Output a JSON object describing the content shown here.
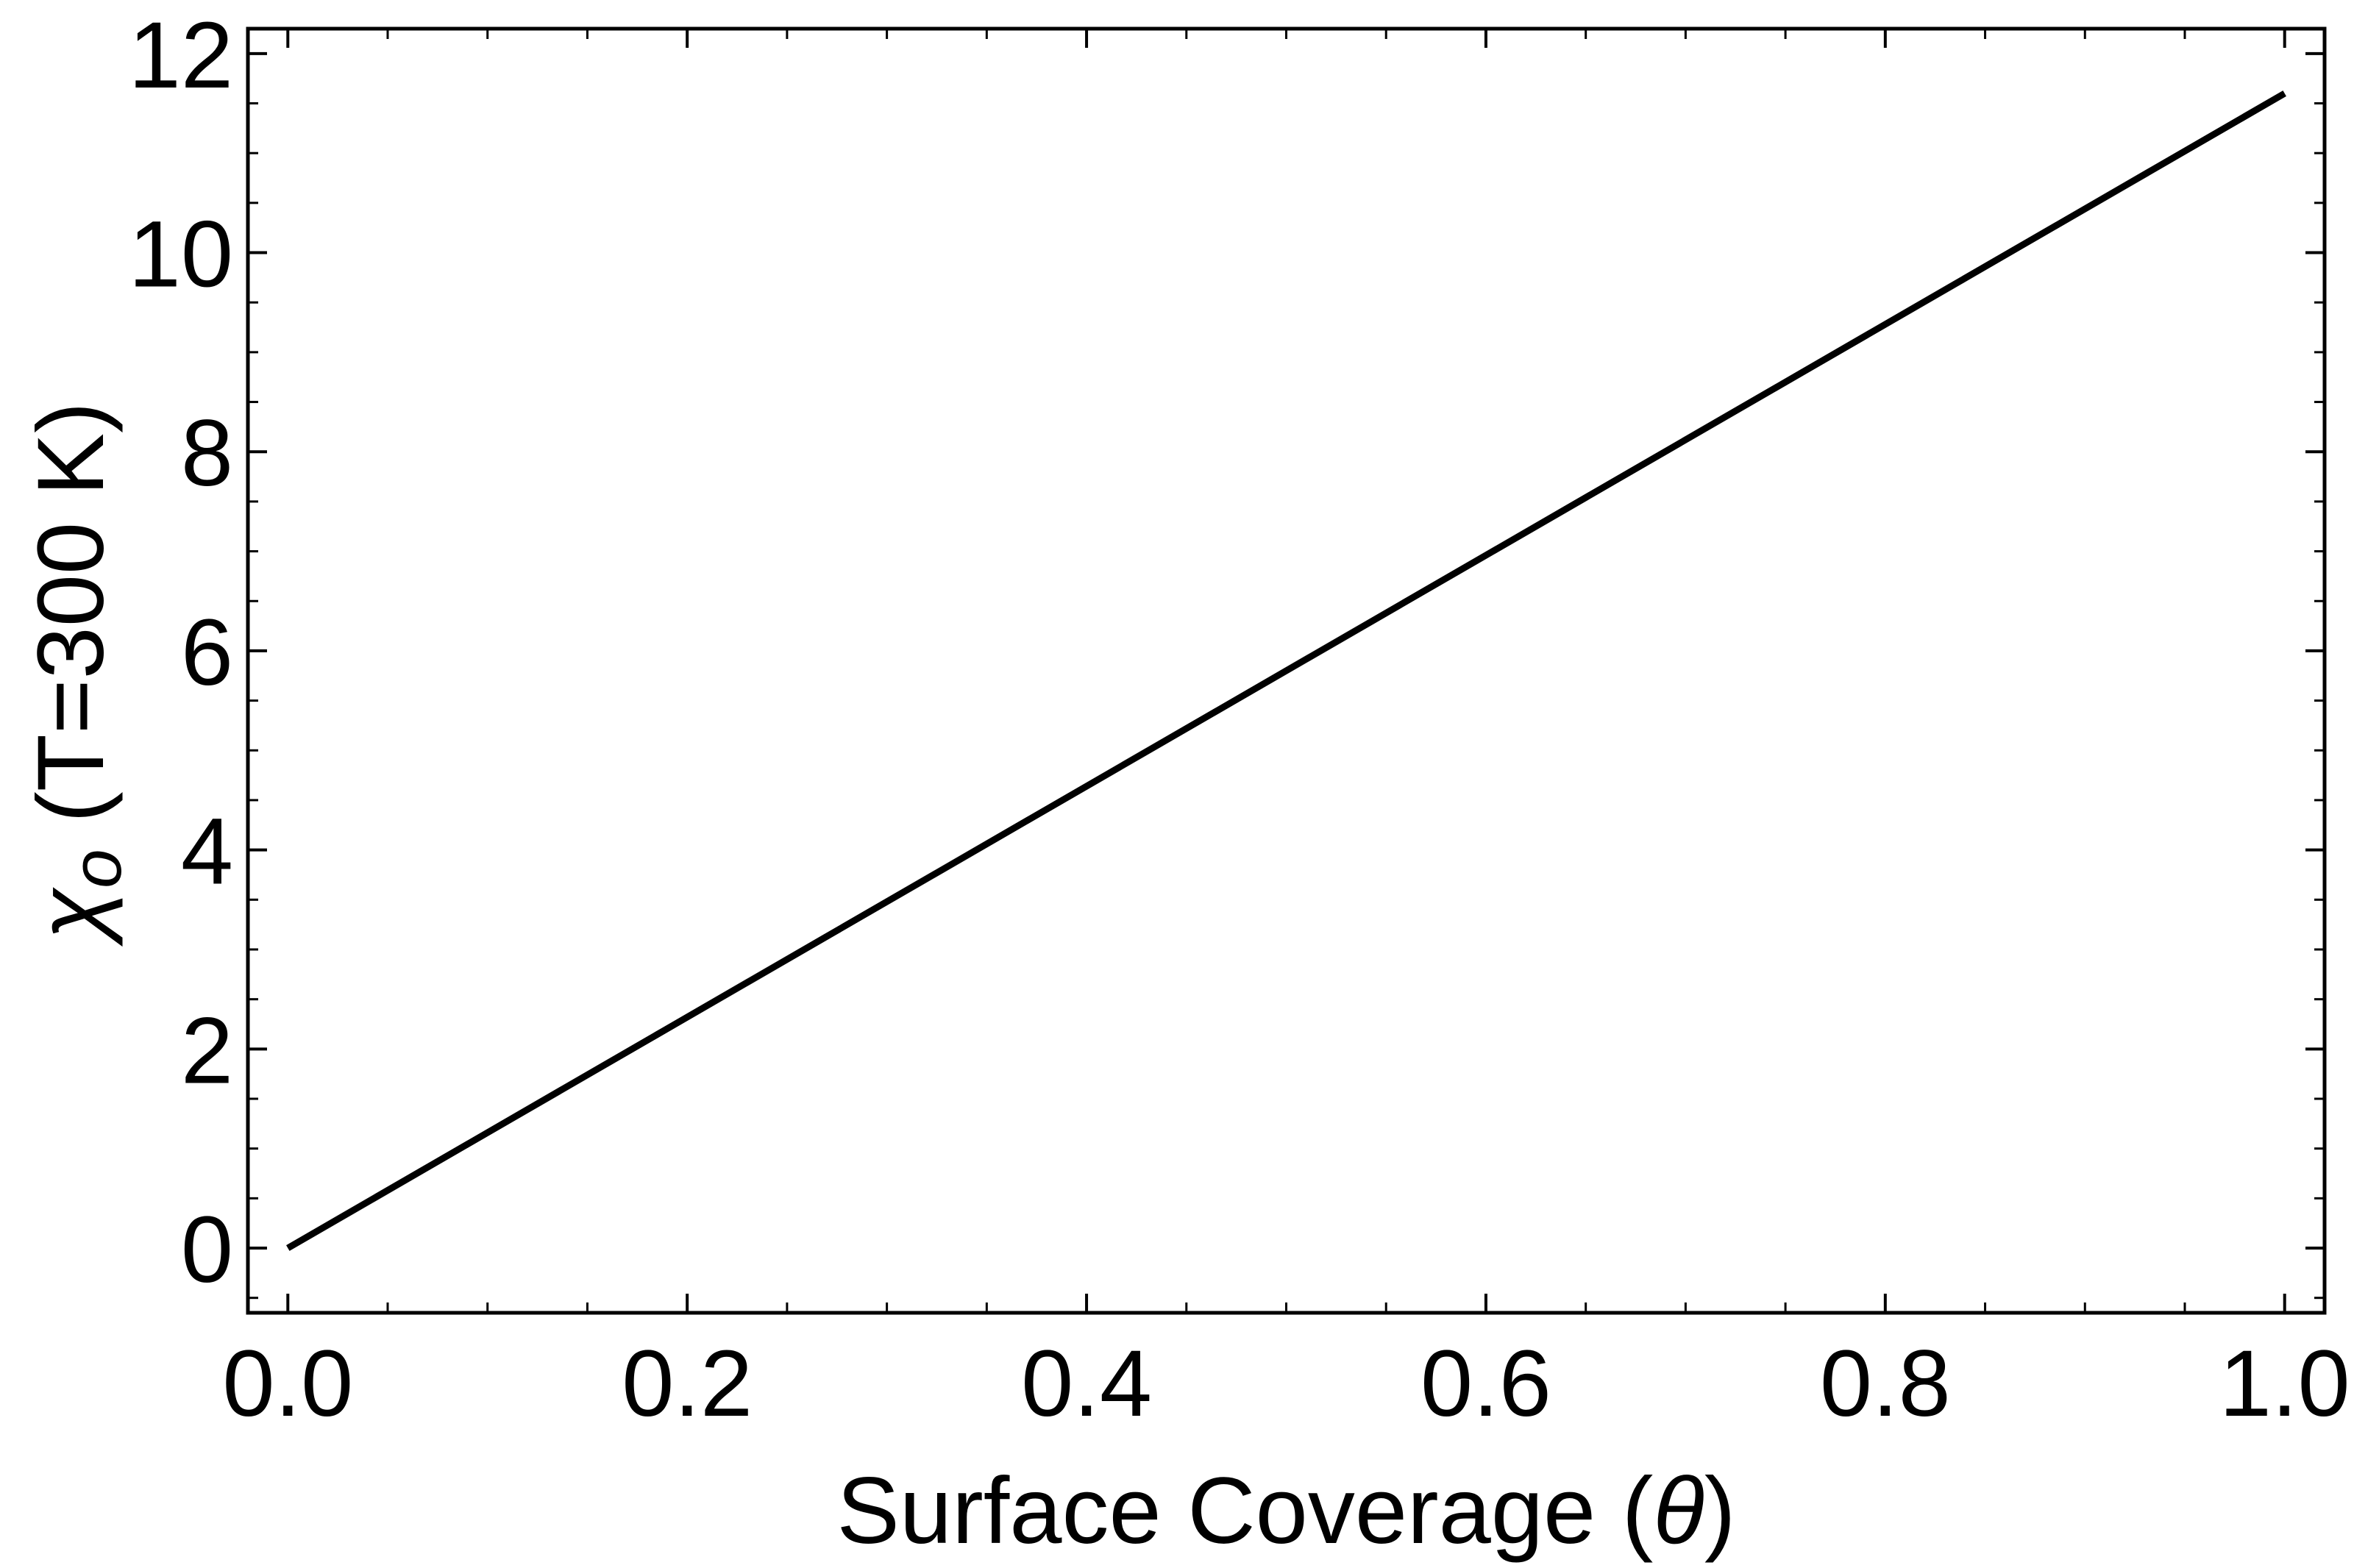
{
  "chart_data": {
    "type": "line",
    "title": "",
    "xlabel": "Surface Coverage (",
    "xlabel_symbol": "θ",
    "xlabel_close": ")",
    "ylabel_symbol": "χ",
    "ylabel_subscript": "o",
    "ylabel_rest": " (T=300 K)",
    "xlim": [
      -0.02,
      1.02
    ],
    "ylim": [
      -0.65,
      12.25
    ],
    "x_ticks": [
      0.0,
      0.2,
      0.4,
      0.6,
      0.8,
      1.0
    ],
    "x_tick_labels": [
      "0.0",
      "0.2",
      "0.4",
      "0.6",
      "0.8",
      "1.0"
    ],
    "x_minor_step": 0.05,
    "y_ticks": [
      0,
      2,
      4,
      6,
      8,
      10,
      12
    ],
    "y_tick_labels": [
      "0",
      "2",
      "4",
      "6",
      "8",
      "10",
      "12"
    ],
    "y_minor_step": 0.5,
    "grid": false,
    "legend": "none",
    "series": [
      {
        "color": "#000000",
        "x": [
          0.0,
          1.0
        ],
        "y": [
          0.0,
          11.6
        ]
      }
    ]
  }
}
